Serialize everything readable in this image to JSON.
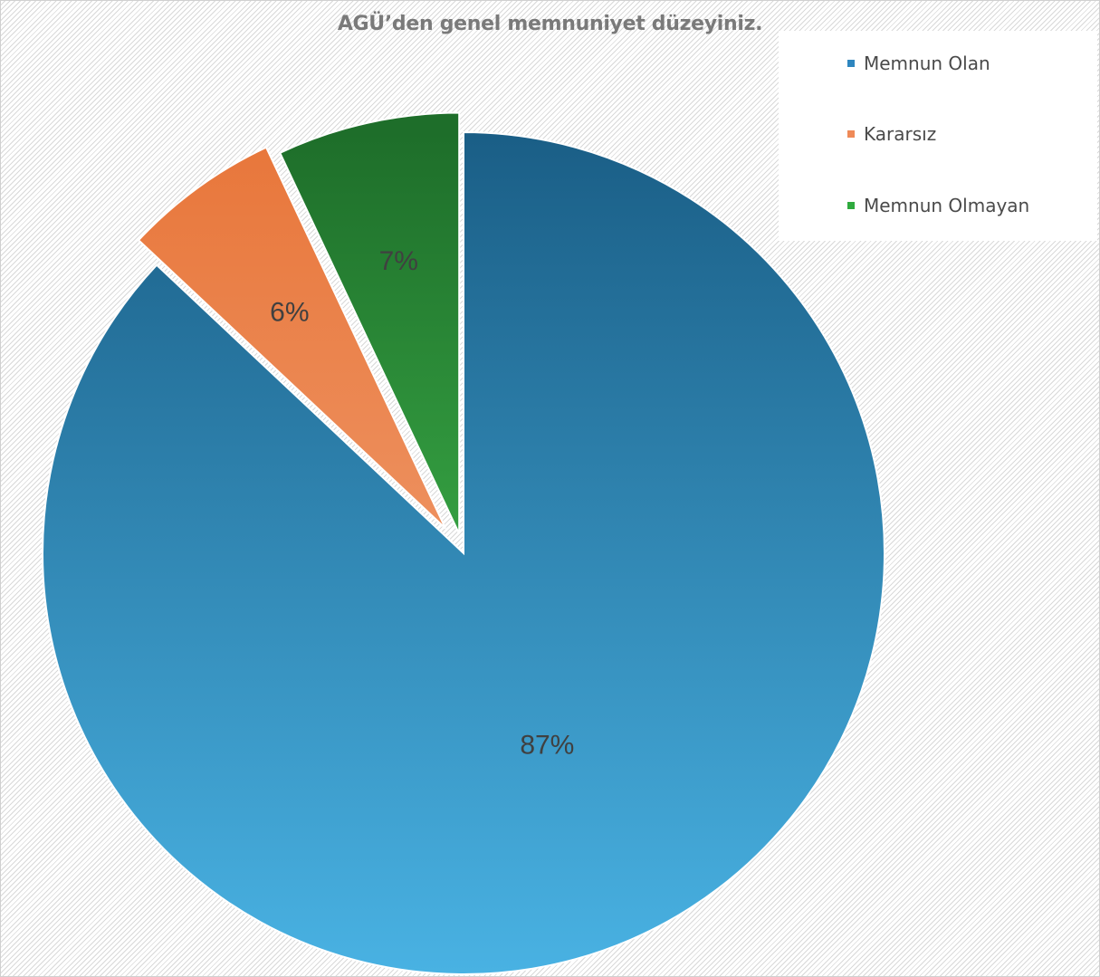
{
  "chart_data": {
    "type": "pie",
    "title": "AGÜ’den genel memnuniyet düzeyiniz.",
    "legend_position": "top-right",
    "slices": [
      {
        "name": "Memnun Olan",
        "value": 87,
        "label": "87%",
        "color_top": "#1a5e86",
        "color_bottom": "#49b2e3",
        "legend_color": "#2e86bf"
      },
      {
        "name": "Kararsız",
        "value": 6,
        "label": "6%",
        "color_top": "#e8763a",
        "color_bottom": "#f3ac85",
        "legend_color": "#ef8a58"
      },
      {
        "name": "Memnun Olmayan",
        "value": 7,
        "label": "7%",
        "color_top": "#1e6e2a",
        "color_bottom": "#4cd35a",
        "legend_color": "#2faa3e"
      }
    ]
  }
}
